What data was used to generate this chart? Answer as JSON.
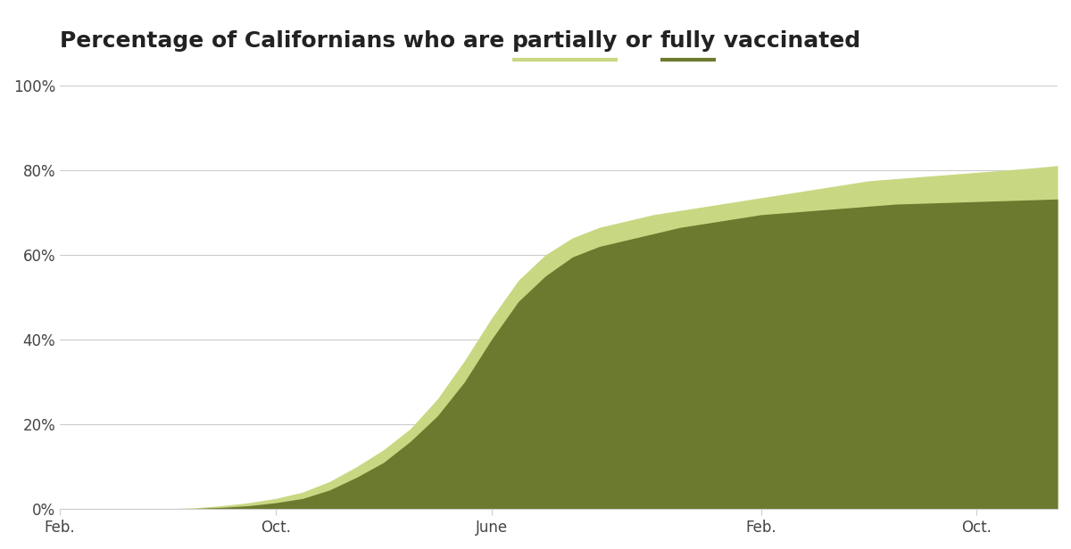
{
  "partially_color": "#c8d882",
  "fully_color": "#6b7a2e",
  "title_color": "#222222",
  "background_color": "#ffffff",
  "grid_color": "#cccccc",
  "axis_label_color": "#444444",
  "ytick_values": [
    0,
    20,
    40,
    60,
    80,
    100
  ],
  "xtick_labels": [
    "Feb.",
    "Oct.",
    "June",
    "Feb.",
    "Oct."
  ],
  "xtick_positions": [
    0,
    8,
    16,
    26,
    34
  ],
  "total_points": 38,
  "partially_data": [
    0.0,
    0.0,
    0.0,
    0.0,
    0.1,
    0.3,
    0.8,
    1.5,
    2.5,
    4.0,
    6.5,
    10.0,
    14.0,
    19.0,
    26.0,
    35.0,
    45.0,
    54.0,
    60.0,
    64.0,
    66.5,
    68.0,
    69.5,
    70.5,
    71.5,
    72.5,
    73.5,
    74.5,
    75.5,
    76.5,
    77.5,
    78.0,
    78.5,
    79.0,
    79.5,
    80.0,
    80.5,
    81.1
  ],
  "fully_data": [
    0.0,
    0.0,
    0.0,
    0.0,
    0.05,
    0.15,
    0.4,
    0.8,
    1.5,
    2.5,
    4.5,
    7.5,
    11.0,
    16.0,
    22.0,
    30.0,
    40.0,
    49.0,
    55.0,
    59.5,
    62.0,
    63.5,
    65.0,
    66.5,
    67.5,
    68.5,
    69.5,
    70.0,
    70.5,
    71.0,
    71.5,
    72.0,
    72.2,
    72.4,
    72.6,
    72.8,
    73.0,
    73.2
  ],
  "title_prefix": "Percentage of Californians who are ",
  "title_word1": "partially",
  "title_middle": " or ",
  "title_word2": "fully",
  "title_suffix": " vaccinated",
  "title_fontsize": 18,
  "tick_fontsize": 12
}
